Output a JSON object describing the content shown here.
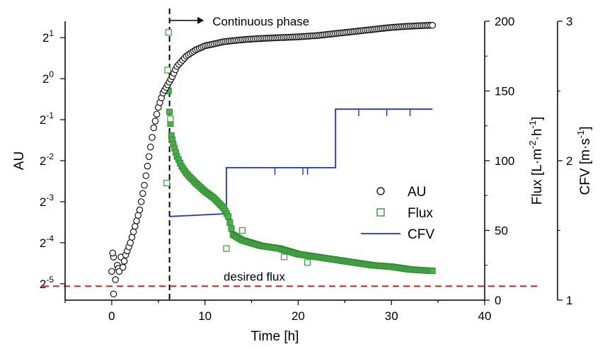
{
  "chart_data": {
    "type": "scatter",
    "x_axis": {
      "label": "Time [h]",
      "range": [
        -5,
        40
      ],
      "ticks": [
        "0",
        "10",
        "20",
        "30",
        "40"
      ]
    },
    "y_axes": {
      "au": {
        "label": "AU",
        "scale": "log2",
        "range_exponent": [
          -5.4,
          1.4
        ],
        "ticks": [
          {
            "base": "2",
            "exp": "1",
            "value": 1
          },
          {
            "base": "2",
            "exp": "0",
            "value": 0
          },
          {
            "base": "2",
            "exp": "-1",
            "value": -1
          },
          {
            "base": "2",
            "exp": "-2",
            "value": -2
          },
          {
            "base": "2",
            "exp": "-3",
            "value": -3
          },
          {
            "base": "2",
            "exp": "-4",
            "value": -4
          },
          {
            "base": "2",
            "exp": "-5",
            "value": -5
          }
        ]
      },
      "flux": {
        "label_main": "Flux [L·m",
        "label_sup1": "-2",
        "label_mid": "·h",
        "label_sup2": "-1",
        "label_end": "]",
        "range": [
          0,
          200
        ],
        "ticks": [
          "0",
          "50",
          "100",
          "150",
          "200"
        ]
      },
      "cfv": {
        "label_main": "CFV [m·s",
        "label_sup": "-1",
        "label_end": "]",
        "range": [
          1,
          3
        ],
        "ticks": [
          "1",
          "2",
          "3"
        ]
      }
    },
    "series": [
      {
        "name": "AU",
        "marker": "circle",
        "color": "#000000",
        "axis": "au",
        "x": [
          0,
          0.2,
          0.4,
          0.6,
          0.8,
          1.0,
          1.2,
          1.5,
          2.0,
          2.5,
          3.0,
          3.5,
          4.0,
          4.5,
          5.0,
          5.5,
          6.0,
          6.5,
          7.0,
          8.0,
          9.0,
          10.0,
          11.0,
          12.0,
          14.0,
          16.0,
          18.0,
          20.0,
          22.0,
          24.0,
          26.0,
          28.0,
          30.0,
          32.0,
          34.0,
          34.4
        ],
        "y": [
          -4.7,
          -4.35,
          -4.9,
          -4.55,
          -4.7,
          -4.35,
          -4.6,
          -4.3,
          -4.0,
          -3.6,
          -3.2,
          -2.6,
          -1.9,
          -1.2,
          -0.7,
          -0.35,
          -0.15,
          0.05,
          0.3,
          0.55,
          0.7,
          0.8,
          0.85,
          0.9,
          0.95,
          0.98,
          1.0,
          1.02,
          1.05,
          1.1,
          1.15,
          1.2,
          1.25,
          1.28,
          1.3,
          1.3
        ],
        "outliers": [
          {
            "x": 0.2,
            "y": -5.25
          },
          {
            "x": 0.1,
            "y": -4.25
          }
        ]
      },
      {
        "name": "Flux",
        "marker": "square",
        "color": "#2e8b2e",
        "axis": "flux",
        "x": [
          6.1,
          6.2,
          6.4,
          6.6,
          7.0,
          7.5,
          8.0,
          9.0,
          10.0,
          11.0,
          12.0,
          12.5,
          13.0,
          14.0,
          16.0,
          18.0,
          20.0,
          22.0,
          24.0,
          26.0,
          28.0,
          30.0,
          32.0,
          34.4
        ],
        "y": [
          150,
          135,
          118,
          112,
          103,
          96,
          91,
          84,
          78,
          73,
          66,
          60,
          47,
          43,
          39,
          37,
          33,
          31,
          29,
          27,
          25,
          24,
          22,
          21
        ],
        "outliers": [
          {
            "x": 6.1,
            "y": 192
          },
          {
            "x": 6.0,
            "y": 165
          },
          {
            "x": 5.9,
            "y": 84
          },
          {
            "x": 14.0,
            "y": 50
          },
          {
            "x": 18.5,
            "y": 31
          },
          {
            "x": 21.0,
            "y": 27
          },
          {
            "x": 12.3,
            "y": 37
          },
          {
            "x": 6.3,
            "y": 130
          }
        ]
      },
      {
        "name": "CFV",
        "marker": "line",
        "color": "#1f2fe0",
        "axis": "cfv",
        "x": [
          6.2,
          12.3,
          12.3,
          24.0,
          24.0,
          34.4
        ],
        "y": [
          1.6,
          1.62,
          1.95,
          1.95,
          2.37,
          2.37
        ]
      }
    ],
    "reference_lines": [
      {
        "orientation": "vertical",
        "x": 6.2,
        "style": "dashed",
        "color": "#000000"
      },
      {
        "orientation": "horizontal",
        "axis": "flux",
        "y": 10,
        "style": "dashed",
        "color": "#e02020"
      }
    ],
    "annotations": [
      {
        "text": "Continuous phase",
        "x": 14.5,
        "au": 1.42
      },
      {
        "text": "desired flux",
        "x": 15.3,
        "flux": 16
      }
    ],
    "legend": {
      "placement": "center-right",
      "entries": [
        "AU",
        "Flux",
        "CFV"
      ]
    }
  }
}
